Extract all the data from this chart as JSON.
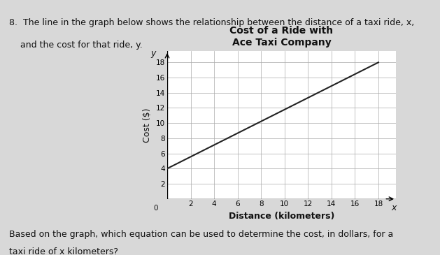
{
  "title_line1": "Cost of a Ride with",
  "title_line2": "Ace Taxi Company",
  "xlabel": "Distance (kilometers)",
  "ylabel": "Cost ($)",
  "x_axis_label_var": "x",
  "y_axis_label_var": "y",
  "question_text_line1": "8.  The line in the graph below shows the relationship between the distance of a taxi ride, x,",
  "question_text_line2": "    and the cost for that ride, y.",
  "bottom_text_line1": "Based on the graph, which equation can be used to determine the cost, in dollars, for a",
  "bottom_text_line2": "taxi ride of x kilometers?",
  "line_x": [
    0,
    18
  ],
  "line_y": [
    4,
    18
  ],
  "x_ticks": [
    2,
    4,
    6,
    8,
    10,
    12,
    14,
    16,
    18
  ],
  "y_ticks": [
    2,
    4,
    6,
    8,
    10,
    12,
    14,
    16,
    18
  ],
  "xlim": [
    0,
    19.5
  ],
  "ylim": [
    0,
    19.5
  ],
  "line_color": "#222222",
  "grid_color": "#aaaaaa",
  "bg_color": "#d8d8d8",
  "plot_bg_color": "#ffffff",
  "text_color": "#111111",
  "title_fontsize": 10,
  "label_fontsize": 9,
  "tick_fontsize": 7.5,
  "question_fontsize": 9,
  "bottom_fontsize": 9
}
